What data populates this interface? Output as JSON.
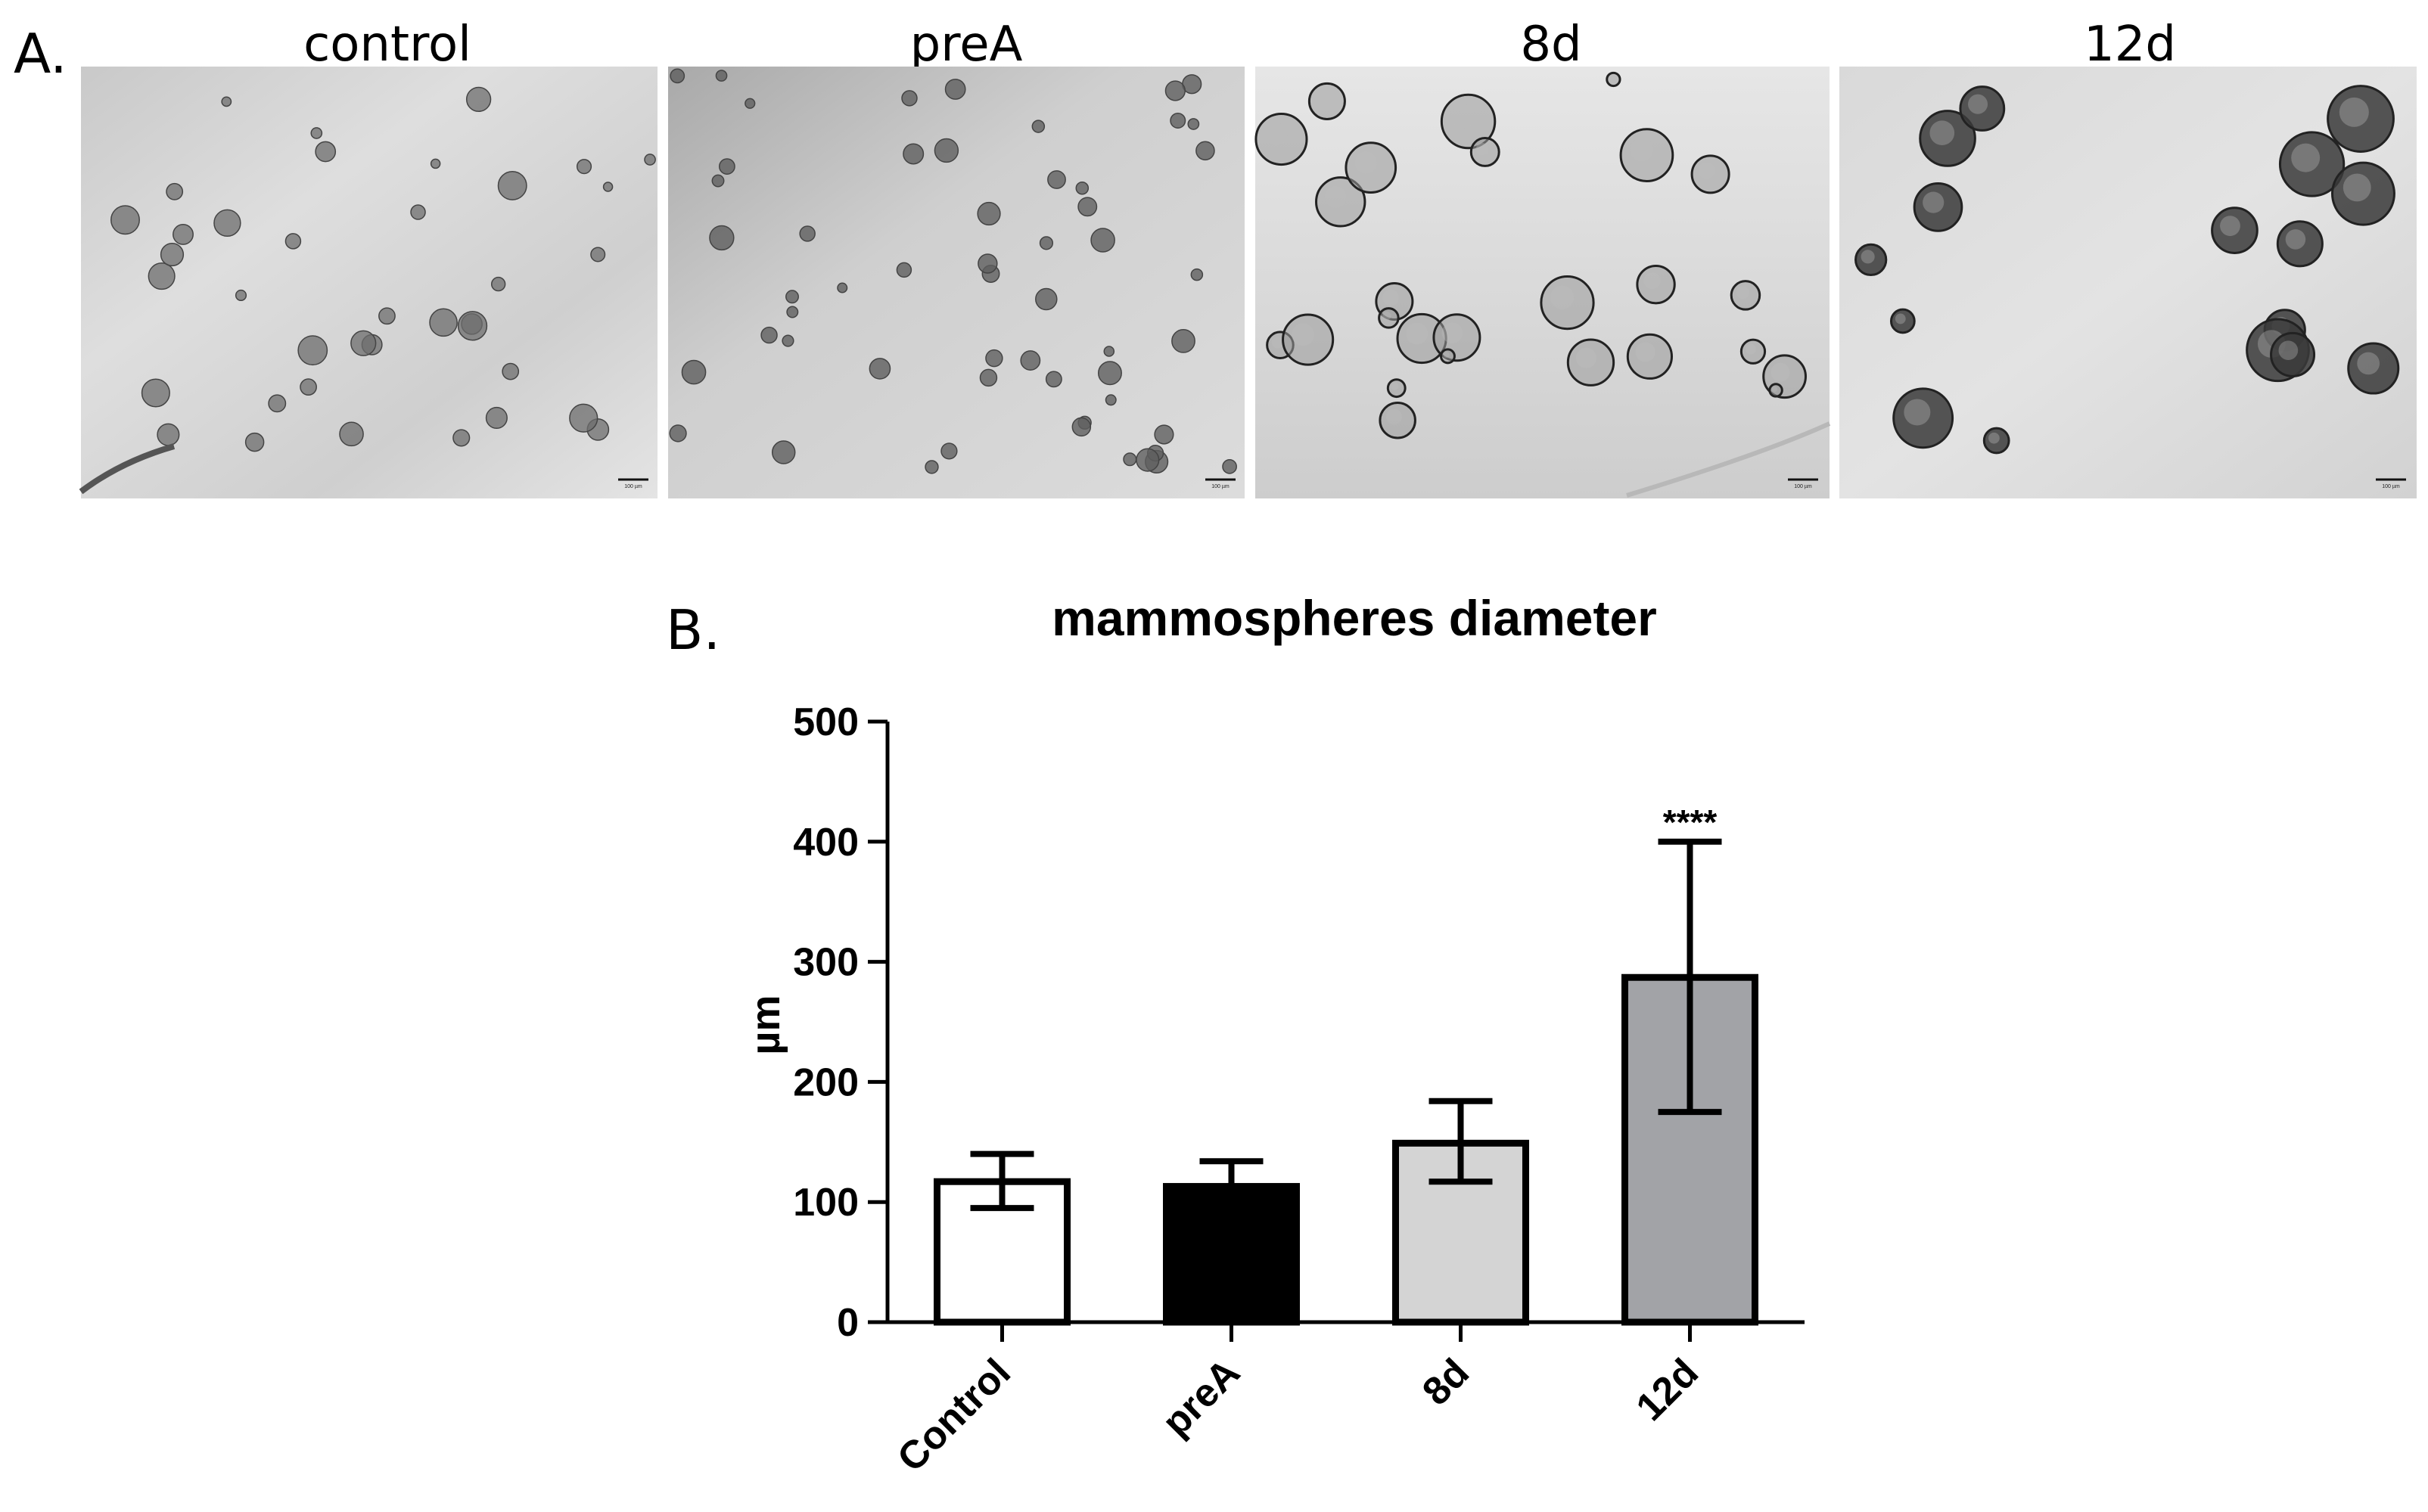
{
  "panel_a": {
    "label": "A.",
    "images": [
      {
        "caption": "control",
        "texture": "mixed"
      },
      {
        "caption": "preA",
        "texture": "small"
      },
      {
        "caption": "8d",
        "texture": "light"
      },
      {
        "caption": "12d",
        "texture": "large"
      }
    ],
    "scale_bar_text": "100 µm"
  },
  "panel_b": {
    "label": "B."
  },
  "chart_data": {
    "type": "bar",
    "title": "mammospheres diameter",
    "ylabel": "µm",
    "xlabel": "",
    "ylim": [
      0,
      500
    ],
    "yticks": [
      0,
      100,
      200,
      300,
      400,
      500
    ],
    "categories": [
      "Control",
      "preA",
      "8d",
      "12d"
    ],
    "values": [
      117,
      113,
      149,
      287
    ],
    "error_low": [
      95,
      113,
      117,
      175
    ],
    "error_high": [
      140,
      134,
      184,
      400
    ],
    "bar_colors": [
      "#ffffff",
      "#000000",
      "#d4d4d4",
      "#a2a3a7"
    ],
    "annotations": [
      {
        "category": "12d",
        "text": "****"
      }
    ],
    "grid": false,
    "legend": "none"
  }
}
